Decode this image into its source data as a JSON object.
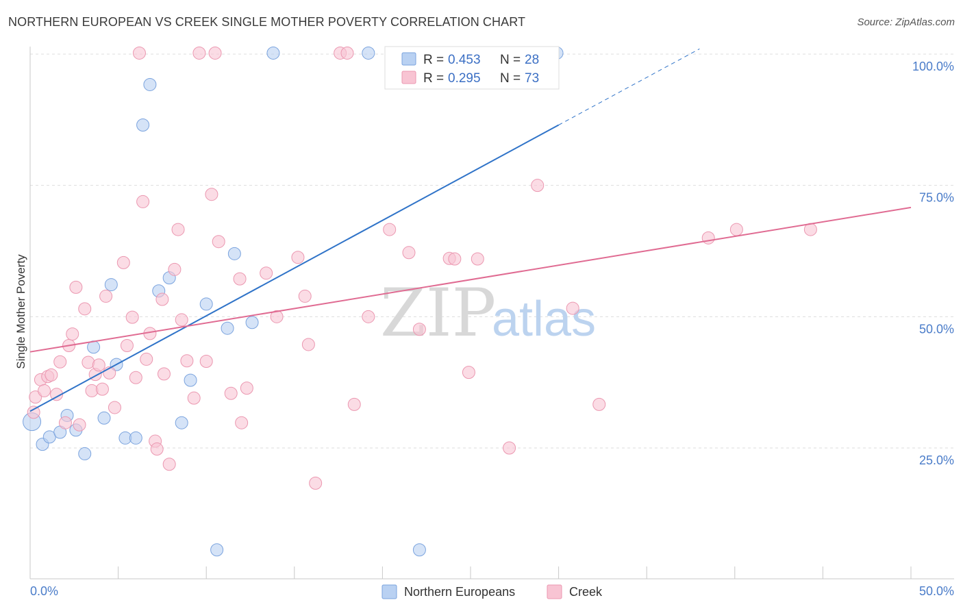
{
  "title": "NORTHERN EUROPEAN VS CREEK SINGLE MOTHER POVERTY CORRELATION CHART",
  "source": "Source: ZipAtlas.com",
  "watermark": {
    "zip": "ZIP",
    "atlas": "atlas"
  },
  "colors": {
    "blue_fill": "#b9d1f2",
    "blue_stroke": "#7aa3de",
    "blue_line": "#2f73c8",
    "pink_fill": "#f8c4d3",
    "pink_stroke": "#eb97b0",
    "pink_line": "#e06b92",
    "tick_text": "#4a7cc9",
    "grid": "#dddddd"
  },
  "legend": {
    "rows": [
      {
        "r_label": "R = ",
        "r_value": "0.453",
        "n_label": "N = ",
        "n_value": "28"
      },
      {
        "r_label": "R = ",
        "r_value": "0.295",
        "n_label": "N = ",
        "n_value": "73"
      }
    ]
  },
  "chart_data": {
    "type": "scatter",
    "title": "NORTHERN EUROPEAN VS CREEK SINGLE MOTHER POVERTY CORRELATION CHART",
    "xlabel": "",
    "ylabel": "Single Mother Poverty",
    "xlim": [
      0,
      50
    ],
    "ylim": [
      0,
      104
    ],
    "x_tick_labels": [
      "0.0%",
      "50.0%"
    ],
    "y_ticks": [
      25,
      50,
      75,
      100
    ],
    "y_tick_labels": [
      "25.0%",
      "50.0%",
      "75.0%",
      "100.0%"
    ],
    "series": [
      {
        "name": "Northern Europeans",
        "r": 0.453,
        "n": 28,
        "trend": {
          "x0": 0,
          "y0": 32.0,
          "x1": 30,
          "y1": 86.5,
          "dash_to_x": 38,
          "dash_to_y": 101
        },
        "points": [
          [
            0.1,
            30.0,
            13
          ],
          [
            0.7,
            25.7,
            9
          ],
          [
            1.1,
            27.1,
            9
          ],
          [
            1.7,
            28.0,
            9
          ],
          [
            2.1,
            31.2,
            9
          ],
          [
            2.6,
            28.4,
            9
          ],
          [
            3.1,
            23.9,
            9
          ],
          [
            3.6,
            44.2,
            9
          ],
          [
            4.2,
            30.7,
            9
          ],
          [
            4.6,
            56.1,
            9
          ],
          [
            4.9,
            40.9,
            9
          ],
          [
            5.4,
            26.9,
            9
          ],
          [
            6.0,
            26.9,
            9
          ],
          [
            6.4,
            86.5,
            9
          ],
          [
            6.8,
            94.2,
            9
          ],
          [
            7.3,
            54.9,
            9
          ],
          [
            7.9,
            57.4,
            9
          ],
          [
            8.6,
            29.8,
            9
          ],
          [
            9.1,
            37.9,
            9
          ],
          [
            10.0,
            52.4,
            9
          ],
          [
            10.6,
            5.6,
            9
          ],
          [
            11.2,
            47.8,
            9
          ],
          [
            11.6,
            62.0,
            9
          ],
          [
            12.6,
            48.9,
            9
          ],
          [
            13.8,
            100.2,
            9
          ],
          [
            19.2,
            100.2,
            9
          ],
          [
            22.1,
            5.6,
            9
          ],
          [
            29.9,
            100.2,
            9
          ]
        ]
      },
      {
        "name": "Creek",
        "r": 0.295,
        "n": 73,
        "trend": {
          "x0": 0,
          "y0": 43.3,
          "x1": 50,
          "y1": 70.8
        },
        "points": [
          [
            0.2,
            31.8,
            9
          ],
          [
            0.3,
            34.7,
            9
          ],
          [
            0.6,
            38.0,
            9
          ],
          [
            0.8,
            35.9,
            9
          ],
          [
            1.0,
            38.6,
            9
          ],
          [
            1.2,
            38.9,
            9
          ],
          [
            1.5,
            35.2,
            9
          ],
          [
            1.7,
            41.4,
            9
          ],
          [
            2.0,
            29.8,
            9
          ],
          [
            2.2,
            44.5,
            9
          ],
          [
            2.4,
            46.7,
            9
          ],
          [
            2.6,
            55.6,
            9
          ],
          [
            2.8,
            29.4,
            9
          ],
          [
            3.1,
            51.5,
            9
          ],
          [
            3.3,
            41.3,
            9
          ],
          [
            3.5,
            35.9,
            9
          ],
          [
            3.7,
            39.0,
            9
          ],
          [
            3.9,
            40.8,
            9
          ],
          [
            4.1,
            36.2,
            9
          ],
          [
            4.3,
            53.9,
            9
          ],
          [
            4.5,
            39.3,
            9
          ],
          [
            4.8,
            32.7,
            9
          ],
          [
            5.3,
            60.3,
            9
          ],
          [
            5.5,
            44.5,
            9
          ],
          [
            5.8,
            49.9,
            9
          ],
          [
            6.0,
            38.4,
            9
          ],
          [
            6.2,
            100.2,
            9
          ],
          [
            6.4,
            71.9,
            9
          ],
          [
            6.6,
            41.9,
            9
          ],
          [
            6.8,
            46.8,
            9
          ],
          [
            7.1,
            26.3,
            9
          ],
          [
            7.2,
            24.8,
            9
          ],
          [
            7.5,
            53.3,
            9
          ],
          [
            7.6,
            39.1,
            9
          ],
          [
            7.9,
            21.9,
            9
          ],
          [
            8.2,
            59.0,
            9
          ],
          [
            8.4,
            66.6,
            9
          ],
          [
            8.6,
            49.4,
            9
          ],
          [
            8.9,
            41.6,
            9
          ],
          [
            9.3,
            34.5,
            9
          ],
          [
            9.6,
            100.2,
            9
          ],
          [
            10.0,
            41.5,
            9
          ],
          [
            10.3,
            73.3,
            9
          ],
          [
            10.5,
            100.2,
            9
          ],
          [
            10.7,
            64.3,
            9
          ],
          [
            11.4,
            35.4,
            9
          ],
          [
            11.9,
            57.2,
            9
          ],
          [
            12.0,
            29.8,
            9
          ],
          [
            12.3,
            36.4,
            9
          ],
          [
            13.4,
            58.3,
            9
          ],
          [
            14.0,
            50.0,
            9
          ],
          [
            15.2,
            61.3,
            9
          ],
          [
            15.6,
            53.9,
            9
          ],
          [
            15.8,
            44.7,
            9
          ],
          [
            16.2,
            18.3,
            9
          ],
          [
            17.6,
            100.2,
            9
          ],
          [
            18.0,
            100.2,
            9
          ],
          [
            18.4,
            33.3,
            9
          ],
          [
            19.2,
            50.0,
            9
          ],
          [
            20.4,
            66.6,
            9
          ],
          [
            21.5,
            62.2,
            9
          ],
          [
            22.1,
            47.6,
            9
          ],
          [
            23.8,
            61.1,
            9
          ],
          [
            24.1,
            61.0,
            9
          ],
          [
            24.9,
            39.4,
            9
          ],
          [
            25.4,
            61.0,
            9
          ],
          [
            27.2,
            25.0,
            9
          ],
          [
            28.8,
            75.0,
            9
          ],
          [
            30.8,
            51.6,
            9
          ],
          [
            32.3,
            33.3,
            9
          ],
          [
            38.5,
            65.0,
            9
          ],
          [
            40.1,
            66.6,
            9
          ],
          [
            44.3,
            66.6,
            9
          ]
        ]
      }
    ]
  }
}
